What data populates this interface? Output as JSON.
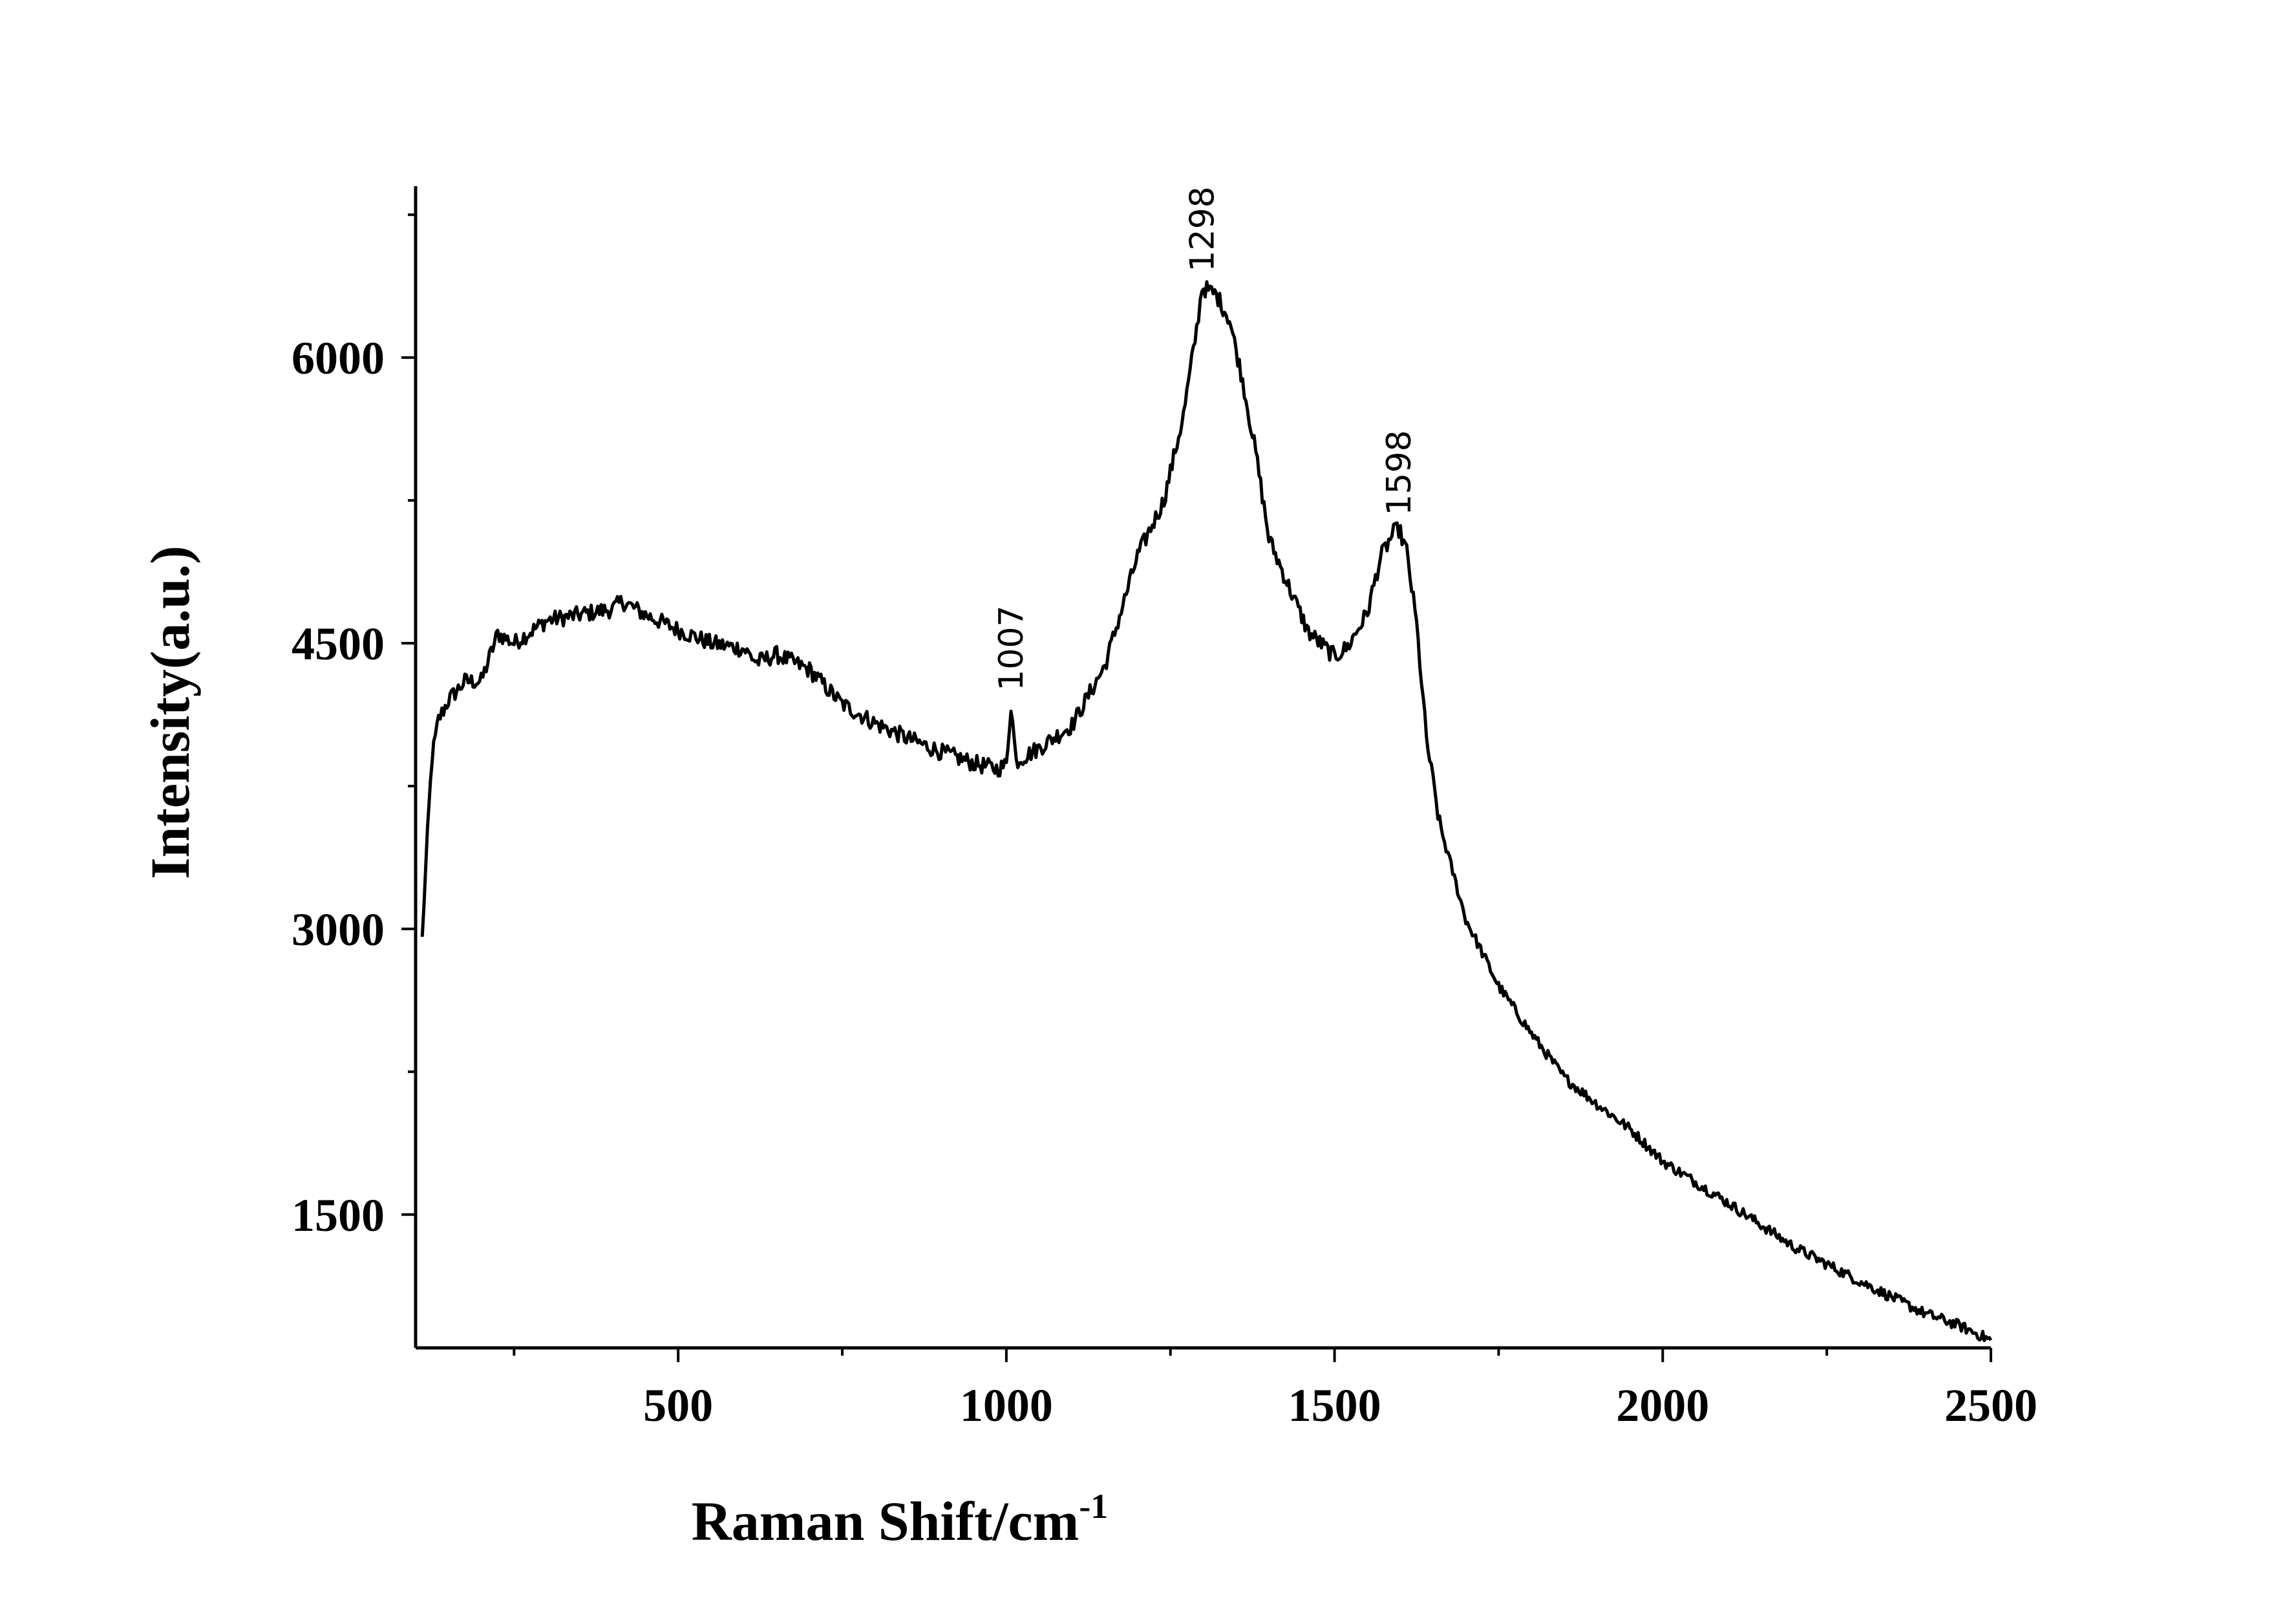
{
  "chart_data": {
    "type": "line",
    "title": "",
    "xlabel": "Raman Shift/cm",
    "xlabel_superscript": "-1",
    "ylabel": "Intensity(a.u.)",
    "xlim": [
      100,
      2500
    ],
    "ylim": [
      800,
      6900
    ],
    "xticks": [
      500,
      1000,
      1500,
      2000,
      2500
    ],
    "yticks": [
      1500,
      3000,
      4500,
      6000
    ],
    "grid": false,
    "line_color": "#000000",
    "annotations": [
      {
        "text": "1007",
        "x": 1007,
        "y": 4250
      },
      {
        "text": "1298",
        "x": 1298,
        "y": 6450
      },
      {
        "text": "1598",
        "x": 1598,
        "y": 5170
      }
    ],
    "series": [
      {
        "x": [
          110,
          118,
          125,
          135,
          150,
          175,
          200,
          215,
          225,
          250,
          300,
          350,
          400,
          415,
          450,
          500,
          550,
          600,
          620,
          650,
          700,
          750,
          800,
          850,
          900,
          950,
          985,
          1000,
          1007,
          1015,
          1050,
          1100,
          1150,
          1200,
          1240,
          1270,
          1290,
          1298,
          1320,
          1340,
          1360,
          1380,
          1400,
          1430,
          1460,
          1500,
          1520,
          1550,
          1570,
          1590,
          1598,
          1610,
          1625,
          1640,
          1660,
          1700,
          1750,
          1800,
          1850,
          1900,
          1950,
          2000,
          2100,
          2200,
          2300,
          2400,
          2450,
          2500
        ],
        "y": [
          2950,
          3500,
          3900,
          4100,
          4200,
          4300,
          4300,
          4450,
          4550,
          4500,
          4620,
          4650,
          4680,
          4720,
          4650,
          4570,
          4500,
          4470,
          4400,
          4440,
          4360,
          4180,
          4080,
          4000,
          3930,
          3870,
          3840,
          3860,
          4180,
          3880,
          3950,
          4070,
          4380,
          4960,
          5250,
          5700,
          6150,
          6370,
          6330,
          6200,
          5880,
          5500,
          5050,
          4800,
          4560,
          4430,
          4480,
          4660,
          4950,
          5080,
          5100,
          4980,
          4600,
          4000,
          3550,
          3050,
          2700,
          2450,
          2220,
          2080,
          1950,
          1780,
          1560,
          1330,
          1150,
          980,
          920,
          840
        ]
      }
    ]
  }
}
